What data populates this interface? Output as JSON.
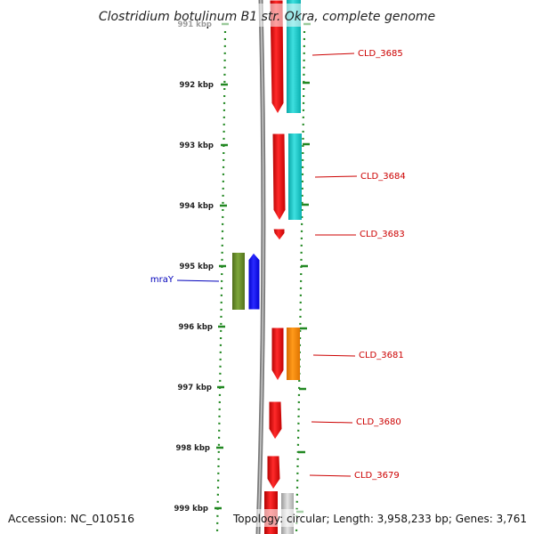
{
  "title": "Clostridium botulinum B1 str. Okra, complete genome",
  "footer": {
    "accession": "Accession: NC_010516",
    "summary": "Topology: circular; Length: 3,958,233 bp; Genes: 3,761"
  },
  "ruler": {
    "labels": [
      "991 kbp",
      "992 kbp",
      "993 kbp",
      "994 kbp",
      "995 kbp",
      "996 kbp",
      "997 kbp",
      "998 kbp",
      "999 kbp"
    ]
  },
  "genes": [
    {
      "name": "CLD_3685",
      "color": "#cc0000"
    },
    {
      "name": "CLD_3684",
      "color": "#cc0000"
    },
    {
      "name": "CLD_3683",
      "color": "#cc0000"
    },
    {
      "name": "mraY",
      "color": "#0000bb"
    },
    {
      "name": "CLD_3681",
      "color": "#cc0000"
    },
    {
      "name": "CLD_3680",
      "color": "#cc0000"
    },
    {
      "name": "CLD_3679",
      "color": "#cc0000"
    }
  ],
  "colors": {
    "cds_forward": "#ff1010",
    "rna": "#20c8c8",
    "green_feature": "#6b8e23",
    "blue_feature": "#0000ff",
    "orange_feature": "#ff8800",
    "grey_feature": "#c8c8c8",
    "ruler_ticks": "#228822"
  }
}
